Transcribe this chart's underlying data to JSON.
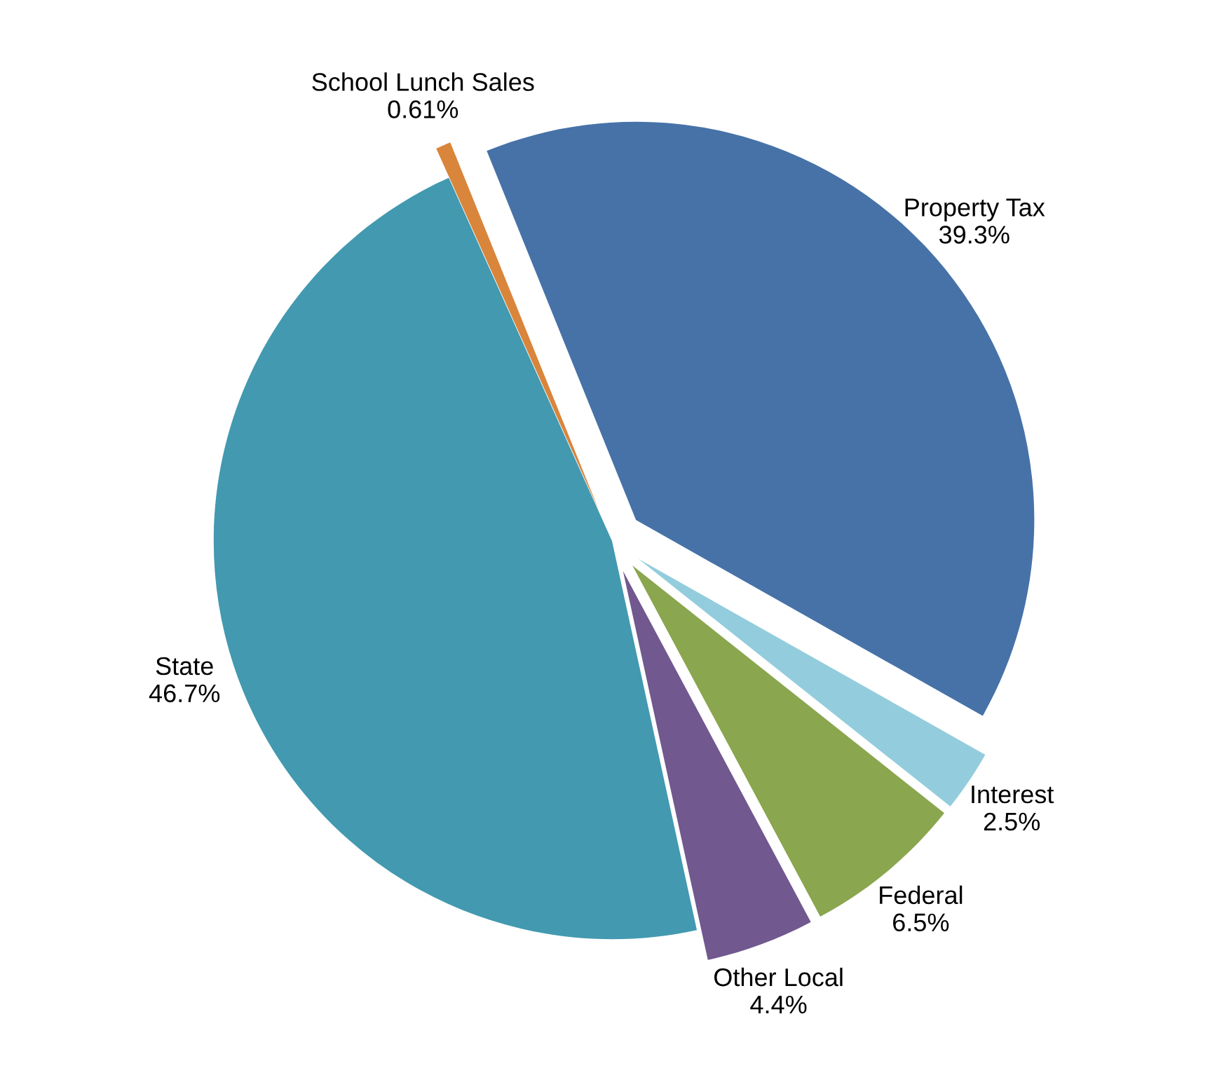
{
  "chart_data": {
    "type": "pie",
    "categories": [
      "Property Tax",
      "Interest",
      "Federal",
      "Other Local",
      "State",
      "School Lunch Sales"
    ],
    "values": [
      39.3,
      2.5,
      6.5,
      4.4,
      46.7,
      0.61
    ],
    "value_labels": [
      "39.3%",
      "2.5%",
      "6.5%",
      "4.4%",
      "46.7%",
      "0.61%"
    ],
    "colors": [
      "#4672a8",
      "#93cddd",
      "#8aa64e",
      "#71588f",
      "#4299b0",
      "#d9853b"
    ],
    "legend": false
  }
}
